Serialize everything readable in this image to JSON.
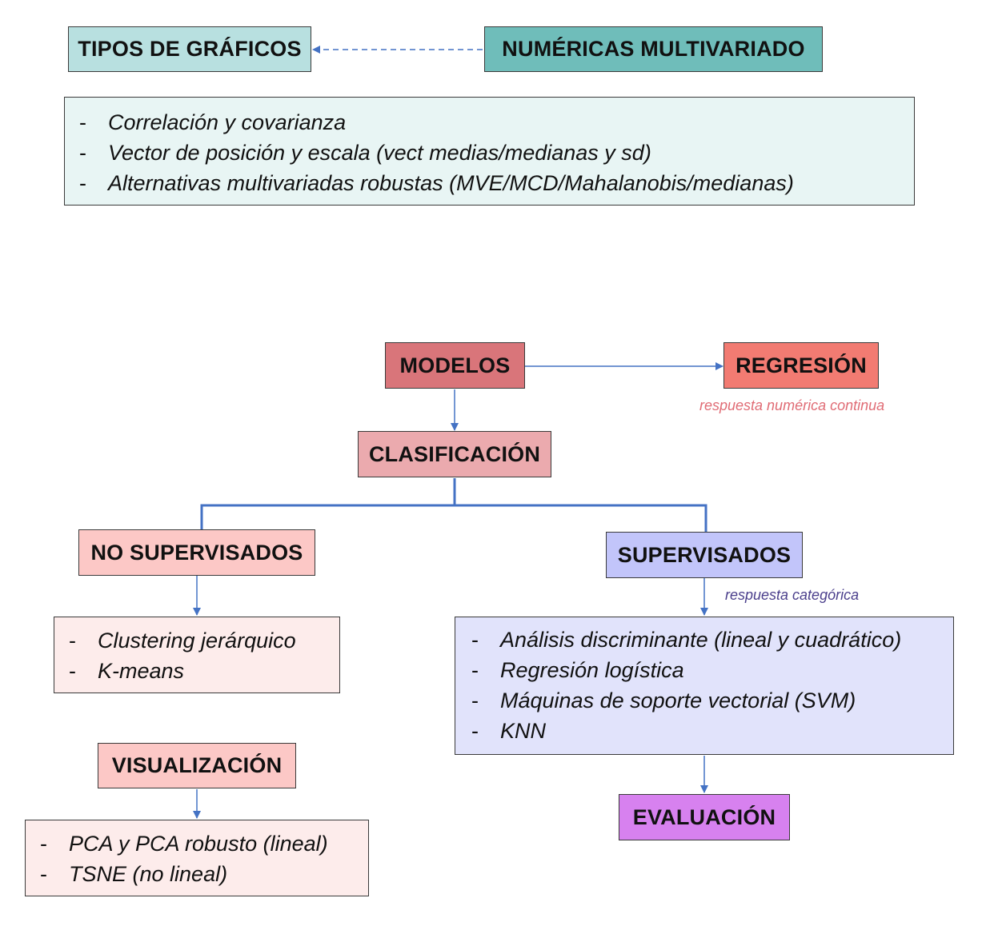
{
  "top": {
    "tipos": "TIPOS DE GRÁFICOS",
    "numericas": "NUMÉRICAS MULTIVARIADO",
    "items": [
      "Correlación y covarianza",
      "Vector de posición y escala (vect medias/medianas y sd)",
      "Alternativas multivariadas robustas (MVE/MCD/Mahalanobis/medianas)"
    ]
  },
  "modelos": {
    "title": "MODELOS",
    "regresion": "REGRESIÓN",
    "regresion_note": "respuesta numérica continua",
    "clasificacion": "CLASIFICACIÓN"
  },
  "no_supervisados": {
    "title": "NO SUPERVISADOS",
    "items": [
      "Clustering jerárquico",
      "K-means"
    ]
  },
  "supervisados": {
    "title": "SUPERVISADOS",
    "note": "respuesta categórica",
    "items": [
      "Análisis discriminante (lineal y cuadrático)",
      "Regresión logística",
      "Máquinas de soporte vectorial (SVM)",
      "KNN"
    ]
  },
  "visualizacion": {
    "title": "VISUALIZACIÓN",
    "items": [
      "PCA y PCA robusto (lineal)",
      "TSNE (no lineal)"
    ]
  },
  "evaluacion": {
    "title": "EVALUACIÓN"
  },
  "dash": "-",
  "colors": {
    "teal_light": "#b8e0e0",
    "teal": "#6fbdba",
    "teal_bg": "#e8f5f4",
    "modelos": "#d9757a",
    "regresion": "#f27b72",
    "clasificacion": "#ebaaae",
    "pink": "#fcc8c6",
    "pink_bg": "#fdeceb",
    "lavender": "#c2c5fa",
    "lavender_bg": "#e1e3fb",
    "violet": "#d781ef",
    "arrow": "#4472c4",
    "note_red": "#e06c75",
    "note_purple": "#4b3f8c"
  }
}
